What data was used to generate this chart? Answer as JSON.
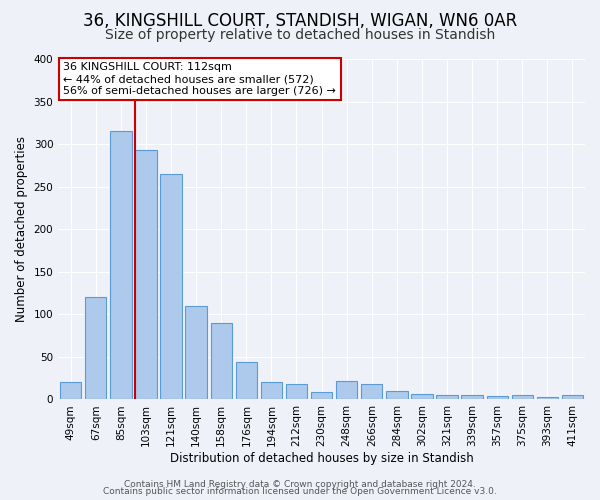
{
  "title": "36, KINGSHILL COURT, STANDISH, WIGAN, WN6 0AR",
  "subtitle": "Size of property relative to detached houses in Standish",
  "xlabel": "Distribution of detached houses by size in Standish",
  "ylabel": "Number of detached properties",
  "bar_labels": [
    "49sqm",
    "67sqm",
    "85sqm",
    "103sqm",
    "121sqm",
    "140sqm",
    "158sqm",
    "176sqm",
    "194sqm",
    "212sqm",
    "230sqm",
    "248sqm",
    "266sqm",
    "284sqm",
    "302sqm",
    "321sqm",
    "339sqm",
    "357sqm",
    "375sqm",
    "393sqm",
    "411sqm"
  ],
  "bar_heights": [
    20,
    120,
    315,
    293,
    265,
    110,
    90,
    44,
    21,
    18,
    9,
    22,
    18,
    10,
    7,
    5,
    5,
    4,
    5,
    3,
    5
  ],
  "bar_color": "#adc9eb",
  "bar_edge_color": "#5b9bd5",
  "vline_x_index": 3,
  "vline_color": "#cc0000",
  "annotation_title": "36 KINGSHILL COURT: 112sqm",
  "annotation_line1": "← 44% of detached houses are smaller (572)",
  "annotation_line2": "56% of semi-detached houses are larger (726) →",
  "annotation_box_color": "#ffffff",
  "annotation_box_edge": "#cc0000",
  "ylim": [
    0,
    400
  ],
  "yticks": [
    0,
    50,
    100,
    150,
    200,
    250,
    300,
    350,
    400
  ],
  "footer1": "Contains HM Land Registry data © Crown copyright and database right 2024.",
  "footer2": "Contains public sector information licensed under the Open Government Licence v3.0.",
  "background_color": "#eef2f8",
  "grid_color": "#ffffff",
  "title_fontsize": 12,
  "subtitle_fontsize": 10,
  "axis_label_fontsize": 8.5,
  "tick_fontsize": 7.5,
  "annotation_fontsize": 8,
  "footer_fontsize": 6.5
}
